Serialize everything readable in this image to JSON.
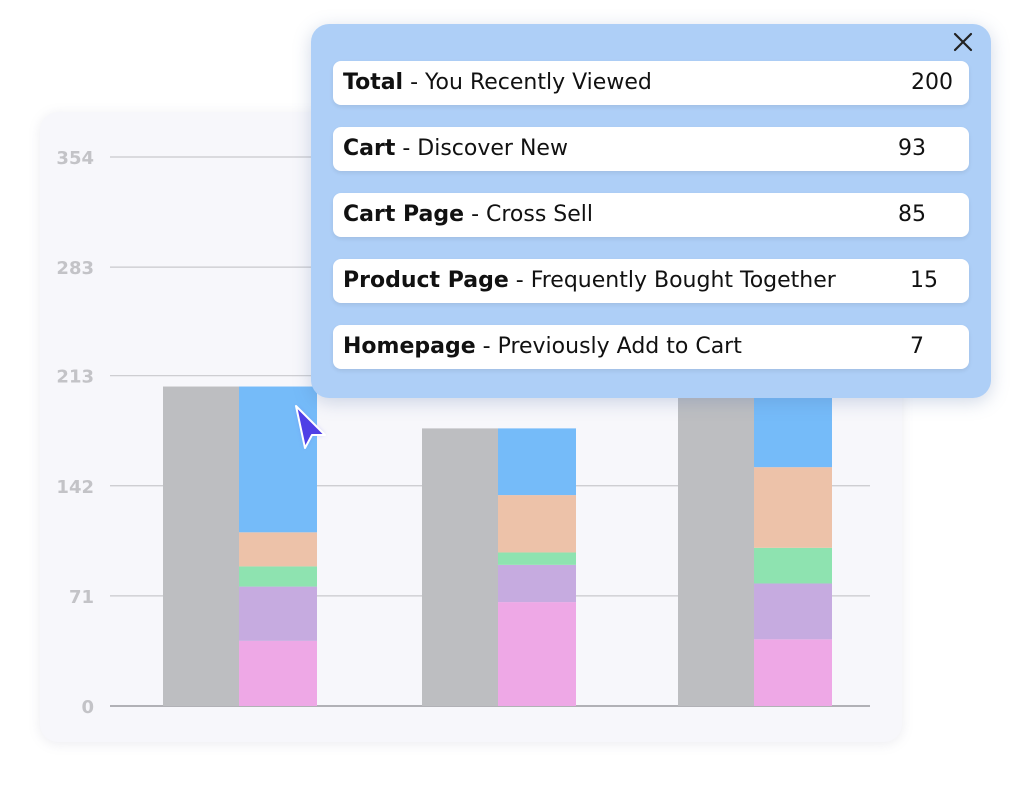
{
  "colors": {
    "total": "#bdbec1",
    "cart_discover_new": "#75bbf9",
    "cart_page_cross_sell": "#edc2a9",
    "product_page_fbt": "#8ee3b0",
    "homepage_prev_add": "#c6abe0",
    "bottom_segment": "#eea8e6",
    "grid": "#c9c9cd",
    "tick_text": "#c3c3c7"
  },
  "tooltip": {
    "close_icon": "close-icon",
    "rows": [
      {
        "bold": "Total",
        "rest": " - You Recently Viewed",
        "value": "200"
      },
      {
        "bold": "Cart",
        "rest": " - Discover New",
        "value": "93"
      },
      {
        "bold": "Cart Page",
        "rest": " - Cross Sell",
        "value": "85"
      },
      {
        "bold": "Product Page",
        "rest": " - Frequently Bought Together",
        "value": "15"
      },
      {
        "bold": "Homepage",
        "rest": " - Previously Add to Cart",
        "value": "7"
      }
    ]
  },
  "chart_data": {
    "type": "bar",
    "ylim": [
      0,
      354
    ],
    "yticks": [
      0,
      71,
      142,
      213,
      283,
      354
    ],
    "grid": true,
    "groups": [
      {
        "total": 206,
        "stack": [
          42,
          35,
          13,
          22,
          94
        ]
      },
      {
        "total": 179,
        "stack": [
          67,
          24,
          8,
          37,
          43
        ]
      },
      {
        "total": 210,
        "stack": [
          43,
          36,
          23,
          52,
          56
        ]
      }
    ],
    "stack_order_bottom_to_top": [
      "bottom_segment",
      "homepage_prev_add",
      "product_page_fbt",
      "cart_page_cross_sell",
      "cart_discover_new"
    ]
  }
}
